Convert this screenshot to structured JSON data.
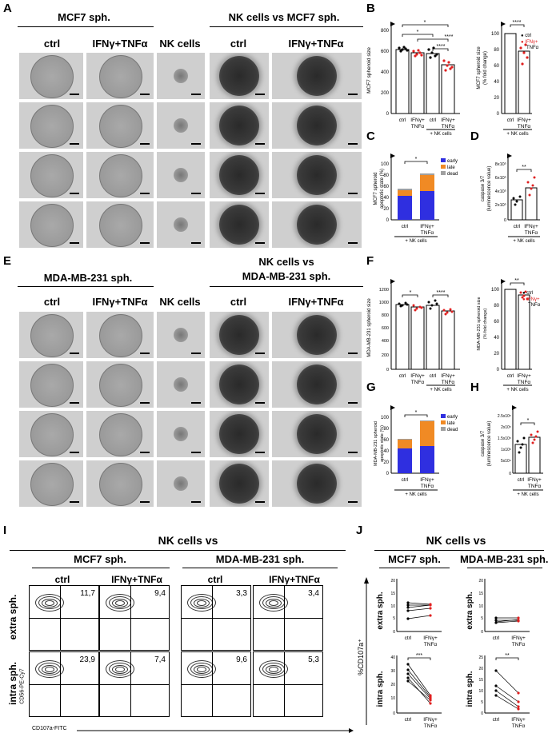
{
  "panels": {
    "A": "A",
    "B": "B",
    "C": "C",
    "D": "D",
    "E": "E",
    "F": "F",
    "G": "G",
    "H": "H",
    "I": "I",
    "J": "J"
  },
  "row1": {
    "header_left": "MCF7 sph.",
    "header_right": "NK cells vs MCF7 sph.",
    "cols": [
      "ctrl",
      "IFNγ+TNFα",
      "NK cells",
      "ctrl",
      "IFNγ+TNFα"
    ]
  },
  "row2": {
    "header_left": "MDA-MB-231 sph.",
    "header_right_1": "NK cells vs",
    "header_right_2": "MDA-MB-231 sph.",
    "cols": [
      "ctrl",
      "IFNγ+TNFα",
      "NK cells",
      "ctrl",
      "IFNγ+TNFα"
    ]
  },
  "common": {
    "ctrl": "ctrl",
    "ifn_1": "IFNγ+",
    "ifn_2": "TNFα",
    "nk": "+ NK cells",
    "legend_ctrl": "● ctrl",
    "legend_ifn_1": "● IFNγ+",
    "legend_ifn_2": "TNFα",
    "early": "early",
    "late": "late",
    "dead": "dead",
    "colors": {
      "early": "#2f2fe0",
      "late": "#f08a24",
      "dead": "#a0a0a0",
      "ifn_dot": "#e02020"
    }
  },
  "B_chart": {
    "ylabel": "MCF7 spheroid size",
    "ticks": [
      "800",
      "600",
      "400",
      "200",
      "0"
    ],
    "sig": [
      "*",
      "*",
      "****",
      "****"
    ]
  },
  "B2_chart": {
    "ylabel_1": "MCF7 spheroid size",
    "ylabel_2": "(% fold change)",
    "ticks": [
      "100",
      "80",
      "60",
      "40",
      "20",
      "0"
    ],
    "sig": "****"
  },
  "C_chart": {
    "ylabel_1": "MCF7 spheroid",
    "ylabel_2": "apoptotic state (%)",
    "ticks": [
      "100",
      "80",
      "60",
      "40",
      "20",
      "0"
    ],
    "sig": "*"
  },
  "D_chart": {
    "ylabel_1": "caspase 3/7",
    "ylabel_2": "(luminescence value)",
    "ticks": [
      "8x10⁵",
      "6x10⁵",
      "4x10⁵",
      "2x10⁵",
      "0"
    ],
    "sig": "**"
  },
  "F_chart": {
    "ylabel": "MDA-MB-231 spheroid size",
    "ticks": [
      "1200",
      "1000",
      "800",
      "600",
      "400",
      "200",
      "0"
    ],
    "sig": [
      "*",
      "****"
    ]
  },
  "F2_chart": {
    "ylabel_1": "MDA-MB-231 spheroid size",
    "ylabel_2": "(% fold change)",
    "ticks": [
      "100",
      "80",
      "60",
      "40",
      "20",
      "0"
    ],
    "sig": "**"
  },
  "G_chart": {
    "ylabel_1": "MDA-MB-231 spheroid",
    "ylabel_2": "apoptotic state (%)",
    "ticks": [
      "100",
      "80",
      "60",
      "40",
      "20",
      "0"
    ],
    "sig": "*"
  },
  "H_chart": {
    "ylabel_1": "caspase 3/7",
    "ylabel_2": "(luminescence value)",
    "ticks": [
      "2.5x10⁵",
      "2x10⁵",
      "1.5x10⁵",
      "1x10⁵",
      "5x10⁴",
      "0"
    ],
    "sig": "*"
  },
  "I_panel": {
    "title": "NK cells vs",
    "sub_left": "MCF7 sph.",
    "sub_right": "MDA-MB-231 sph.",
    "cols": [
      "ctrl",
      "IFNγ+TNFα",
      "ctrl",
      "IFNγ+TNFα"
    ],
    "row_extra": "extra sph.",
    "row_intra": "intra sph.",
    "yaxis": "CD56-PE-Cy7",
    "xaxis": "CD107a-FITC",
    "values_extra": [
      "11,7",
      "9,4",
      "3,3",
      "3,4"
    ],
    "values_intra": [
      "23,9",
      "7,4",
      "9,6",
      "5,3"
    ]
  },
  "J_panel": {
    "title": "NK cells vs",
    "sub_left": "MCF7 sph.",
    "sub_right": "MDA-MB-231 sph.",
    "yaxis": "%CD107a⁺",
    "row_extra": "extra sph.",
    "row_intra": "intra sph.",
    "ticks_top": [
      "20",
      "15",
      "10",
      "5",
      "0"
    ],
    "ticks_bot_left": [
      "40",
      "30",
      "20",
      "10",
      "0"
    ],
    "ticks_bot_right": [
      "25",
      "20",
      "15",
      "10",
      "5",
      "0"
    ],
    "sig_left": "***",
    "sig_right": "**"
  },
  "chart_data": [
    {
      "type": "bar",
      "panel": "B (left)",
      "ylabel": "MCF7 spheroid size",
      "categories": [
        "ctrl",
        "IFNγ+TNFα",
        "ctrl + NK cells",
        "IFNγ+TNFα + NK cells"
      ],
      "values": [
        610,
        580,
        575,
        470
      ],
      "ylim": [
        0,
        800
      ]
    },
    {
      "type": "bar",
      "panel": "B (right)",
      "ylabel": "MCF7 spheroid size (% fold change)",
      "categories": [
        "ctrl + NK cells",
        "IFNγ+TNFα + NK cells"
      ],
      "values": [
        100,
        78
      ],
      "ylim": [
        0,
        100
      ]
    },
    {
      "type": "bar",
      "panel": "C",
      "ylabel": "MCF7 spheroid apoptotic state (%)",
      "categories": [
        "ctrl + NK cells",
        "IFNγ+TNFα + NK cells"
      ],
      "series": [
        {
          "name": "early",
          "values": [
            42,
            52
          ]
        },
        {
          "name": "late",
          "values": [
            10,
            28
          ]
        },
        {
          "name": "dead",
          "values": [
            2,
            2
          ]
        }
      ],
      "ylim": [
        0,
        100
      ]
    },
    {
      "type": "bar",
      "panel": "D",
      "ylabel": "caspase 3/7 (luminescence value)",
      "categories": [
        "ctrl + NK cells",
        "IFNγ+TNFα + NK cells"
      ],
      "values": [
        300000,
        470000
      ],
      "ylim": [
        0,
        800000
      ]
    },
    {
      "type": "bar",
      "panel": "F (left)",
      "ylabel": "MDA-MB-231 spheroid size",
      "categories": [
        "ctrl",
        "IFNγ+TNFα",
        "ctrl + NK cells",
        "IFNγ+TNFα + NK cells"
      ],
      "values": [
        970,
        930,
        960,
        870
      ],
      "ylim": [
        0,
        1200
      ]
    },
    {
      "type": "bar",
      "panel": "F (right)",
      "ylabel": "MDA-MB-231 spheroid size (% fold change)",
      "categories": [
        "ctrl + NK cells",
        "IFNγ+TNFα + NK cells"
      ],
      "values": [
        100,
        93
      ],
      "ylim": [
        0,
        100
      ]
    },
    {
      "type": "bar",
      "panel": "G",
      "ylabel": "MDA-MB-231 spheroid apoptotic state (%)",
      "categories": [
        "ctrl + NK cells",
        "IFNγ+TNFα + NK cells"
      ],
      "series": [
        {
          "name": "early",
          "values": [
            44,
            48
          ]
        },
        {
          "name": "late",
          "values": [
            16,
            44
          ]
        },
        {
          "name": "dead",
          "values": [
            1,
            1
          ]
        }
      ],
      "ylim": [
        0,
        100
      ]
    },
    {
      "type": "bar",
      "panel": "H",
      "ylabel": "caspase 3/7 (luminescence value)",
      "categories": [
        "ctrl + NK cells",
        "IFNγ+TNFα + NK cells"
      ],
      "values": [
        130000,
        165000
      ],
      "ylim": [
        0,
        250000
      ]
    },
    {
      "type": "line",
      "panel": "J MCF7 extra",
      "x": [
        "ctrl",
        "IFNγ+TNFα"
      ],
      "series": [
        {
          "values": [
            10,
            10
          ]
        },
        {
          "values": [
            9,
            10
          ]
        },
        {
          "values": [
            5,
            6
          ]
        },
        {
          "values": [
            8,
            9
          ]
        },
        {
          "values": [
            11,
            10
          ]
        }
      ],
      "ylim": [
        0,
        20
      ]
    },
    {
      "type": "line",
      "panel": "J MCF7 intra",
      "x": [
        "ctrl",
        "IFNγ+TNFα"
      ],
      "series": [
        {
          "values": [
            29,
            12
          ]
        },
        {
          "values": [
            25,
            11
          ]
        },
        {
          "values": [
            22,
            10
          ]
        },
        {
          "values": [
            20,
            7
          ]
        },
        {
          "values": [
            18,
            9
          ]
        }
      ],
      "ylim": [
        0,
        40
      ]
    },
    {
      "type": "line",
      "panel": "J MDA extra",
      "x": [
        "ctrl",
        "IFNγ+TNFα"
      ],
      "series": [
        {
          "values": [
            4,
            4
          ]
        },
        {
          "values": [
            3,
            3.5
          ]
        },
        {
          "values": [
            5,
            5
          ]
        },
        {
          "values": [
            3.5,
            4
          ]
        }
      ],
      "ylim": [
        0,
        20
      ]
    },
    {
      "type": "line",
      "panel": "J MDA intra",
      "x": [
        "ctrl",
        "IFNγ+TNFα"
      ],
      "series": [
        {
          "values": [
            19,
            9
          ]
        },
        {
          "values": [
            12,
            5
          ]
        },
        {
          "values": [
            10,
            3
          ]
        },
        {
          "values": [
            8,
            2
          ]
        }
      ],
      "ylim": [
        0,
        25
      ]
    }
  ]
}
